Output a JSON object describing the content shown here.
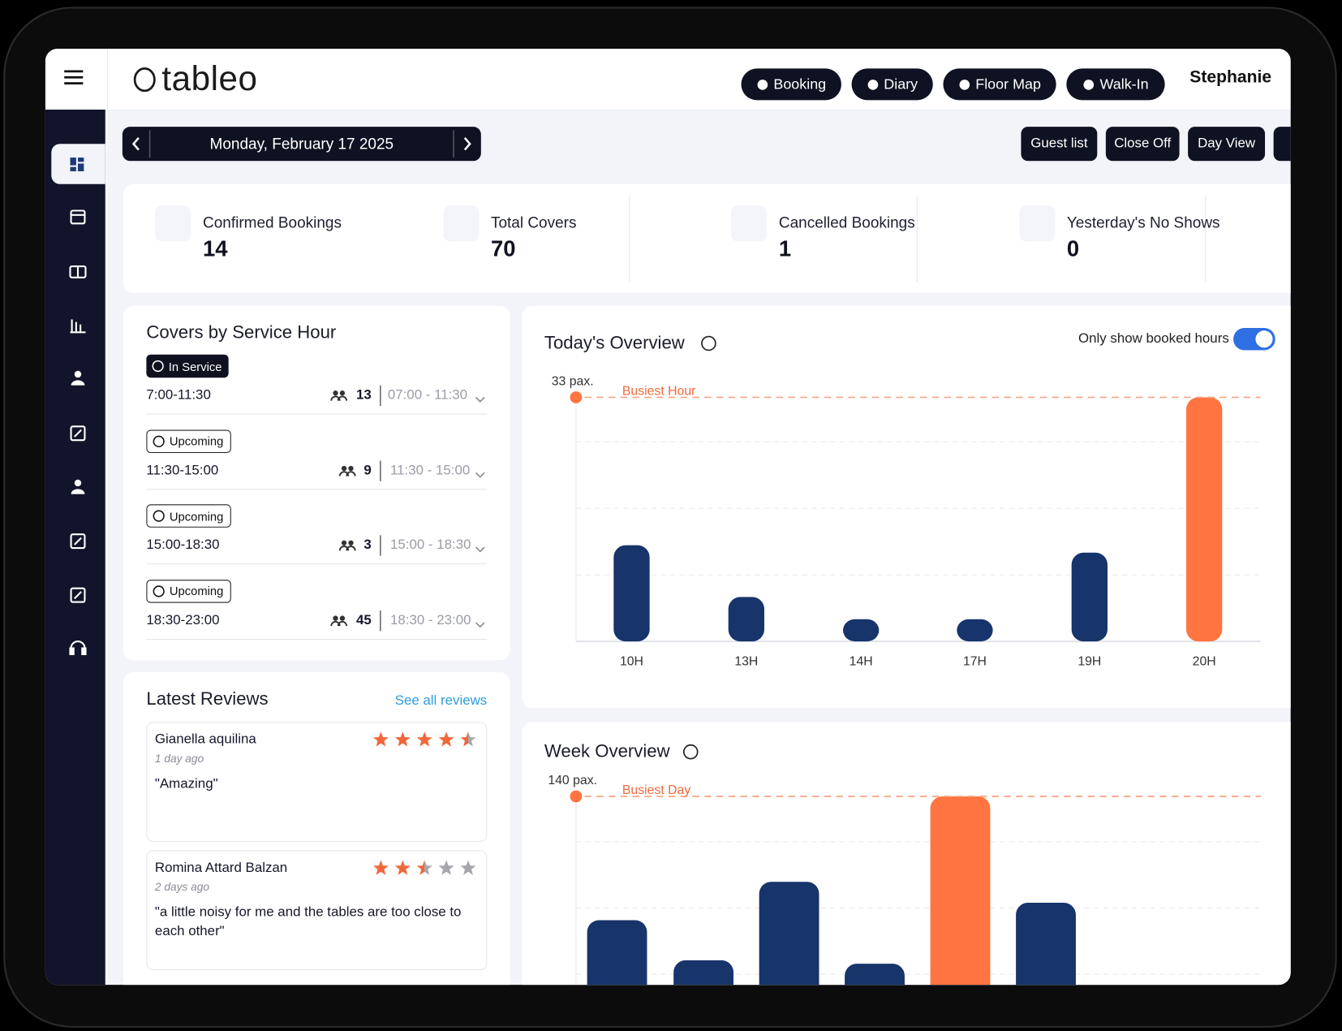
{
  "header": {
    "logo": "tableo",
    "buttons": [
      "Booking",
      "Diary",
      "Floor Map",
      "Walk-In"
    ],
    "user": "Stephanie"
  },
  "toolbar": {
    "date": "Monday, February 17 2025",
    "buttons": [
      "Guest list",
      "Close Off",
      "Day View"
    ]
  },
  "stats": [
    {
      "label": "Confirmed Bookings",
      "value": 14
    },
    {
      "label": "Total Covers",
      "value": 70
    },
    {
      "label": "Cancelled Bookings",
      "value": 1
    },
    {
      "label": "Yesterday's No Shows",
      "value": 0
    }
  ],
  "services": {
    "title": "Covers by Service Hour",
    "items": [
      {
        "status": "In Service",
        "time": "7:00-11:30",
        "covers": 13,
        "range": "07:00 - 11:30"
      },
      {
        "status": "Upcoming",
        "time": "11:30-15:00",
        "covers": 9,
        "range": "11:30 - 15:00"
      },
      {
        "status": "Upcoming",
        "time": "15:00-18:30",
        "covers": 3,
        "range": "15:00 - 18:30"
      },
      {
        "status": "Upcoming",
        "time": "18:30-23:00",
        "covers": 45,
        "range": "18:30 - 23:00"
      }
    ]
  },
  "reviews": {
    "title": "Latest Reviews",
    "link": "See all reviews",
    "items": [
      {
        "name": "Gianella aquilina",
        "ago": "1 day ago",
        "text": "\"Amazing\"",
        "rating": 4.5
      },
      {
        "name": "Romina Attard Balzan",
        "ago": "2 days ago",
        "text": "\"a little noisy for me and the tables are too close to each other\"",
        "rating": 2.5
      }
    ]
  },
  "chart_data": [
    {
      "type": "bar",
      "title": "Today's Overview",
      "toggle_label": "Only show booked hours",
      "categories": [
        "10H",
        "13H",
        "14H",
        "17H",
        "19H",
        "20H"
      ],
      "values": [
        13,
        6,
        3,
        3,
        12,
        33
      ],
      "ylim": [
        0,
        33
      ],
      "grid_values": [
        9,
        18,
        27
      ],
      "max_label": "33 pax.",
      "busiest_label": "Busiest Hour",
      "color": "#17346b",
      "highlight_color": "#ff7440"
    },
    {
      "type": "bar",
      "title": "Week Overview",
      "values": [
        69,
        46,
        91,
        44,
        140,
        79
      ],
      "ylim": [
        0,
        140
      ],
      "grid_values": [
        38,
        76,
        114
      ],
      "max_label": "140 pax.",
      "busiest_label": "Busiest Day",
      "color": "#17346b",
      "highlight_color": "#ff7440"
    }
  ]
}
